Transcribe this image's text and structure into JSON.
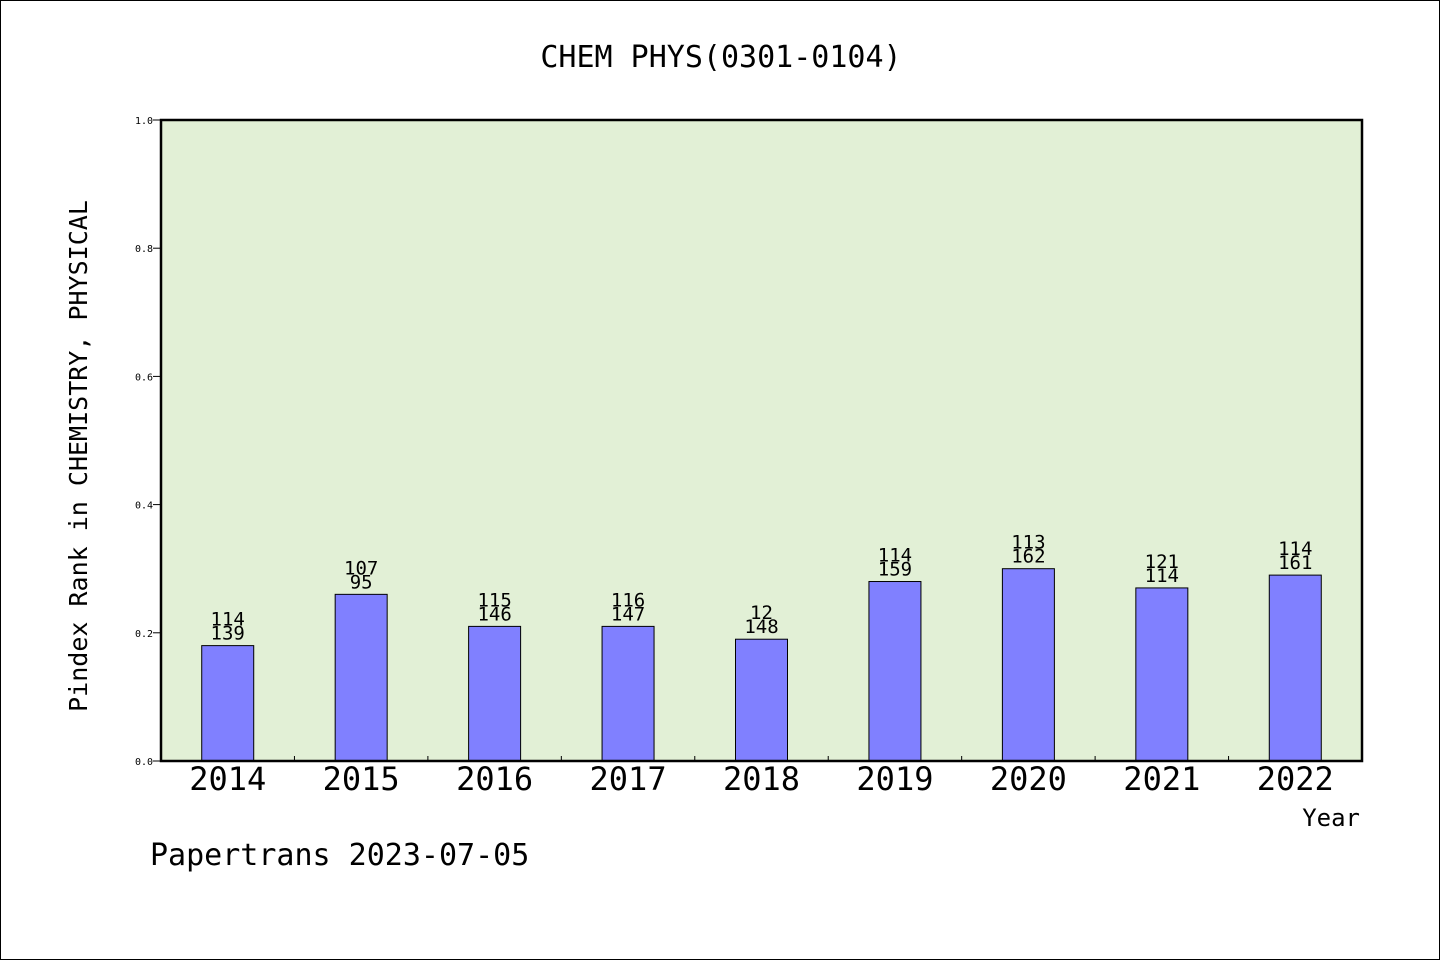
{
  "chart_data": {
    "type": "bar",
    "title": "CHEM PHYS(0301-0104)",
    "xlabel": "Year",
    "ylabel": "Pindex Rank in CHEMISTRY, PHYSICAL",
    "ylim": [
      0.0,
      1.0
    ],
    "yticks": [
      "0.0",
      "0.2",
      "0.4",
      "0.6",
      "0.8",
      "1.0"
    ],
    "categories": [
      "2014",
      "2015",
      "2016",
      "2017",
      "2018",
      "2019",
      "2020",
      "2021",
      "2022"
    ],
    "values": [
      0.18,
      0.26,
      0.21,
      0.21,
      0.19,
      0.28,
      0.3,
      0.27,
      0.29
    ],
    "labels_top": [
      "114",
      "107",
      "115",
      "116",
      "12",
      "114",
      "113",
      "121",
      "114"
    ],
    "labels_bottom": [
      "139",
      "95",
      "146",
      "147",
      "148",
      "159",
      "162",
      "114",
      "161"
    ],
    "grid": false,
    "colors": {
      "plot_bg": "#e2f0d6",
      "bar": "#8080ff",
      "bar_edge": "#000000"
    }
  },
  "footer": {
    "text": "Papertrans 2023-07-05"
  }
}
